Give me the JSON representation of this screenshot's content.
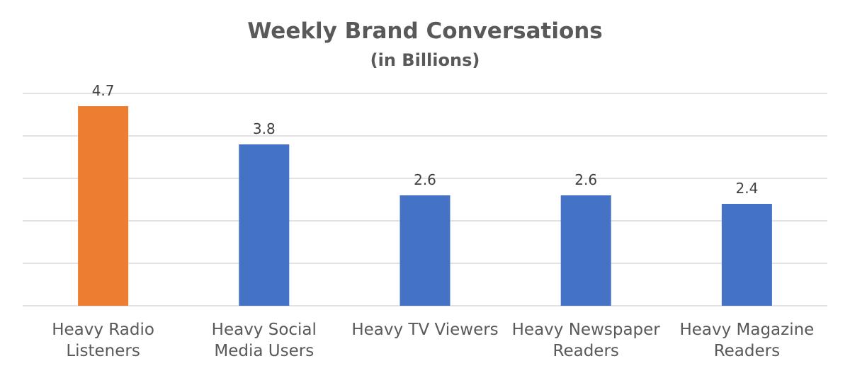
{
  "chart_data": {
    "type": "bar",
    "title": "Weekly Brand Conversations",
    "subtitle": "(in Billions)",
    "categories": [
      [
        "Heavy Radio",
        "Listeners"
      ],
      [
        "Heavy Social",
        "Media Users"
      ],
      [
        "Heavy TV Viewers"
      ],
      [
        "Heavy Newspaper",
        "Readers"
      ],
      [
        "Heavy Magazine",
        "Readers"
      ]
    ],
    "values": [
      4.7,
      3.8,
      2.6,
      2.6,
      2.4
    ],
    "value_labels": [
      "4.7",
      "3.8",
      "2.6",
      "2.6",
      "2.4"
    ],
    "bar_colors": [
      "#ED7D31",
      "#4472C4",
      "#4472C4",
      "#4472C4",
      "#4472C4"
    ],
    "gridline_color": "#D9D9D9",
    "ylim": [
      0,
      5
    ],
    "grid": true,
    "xlabel": "",
    "ylabel": ""
  }
}
